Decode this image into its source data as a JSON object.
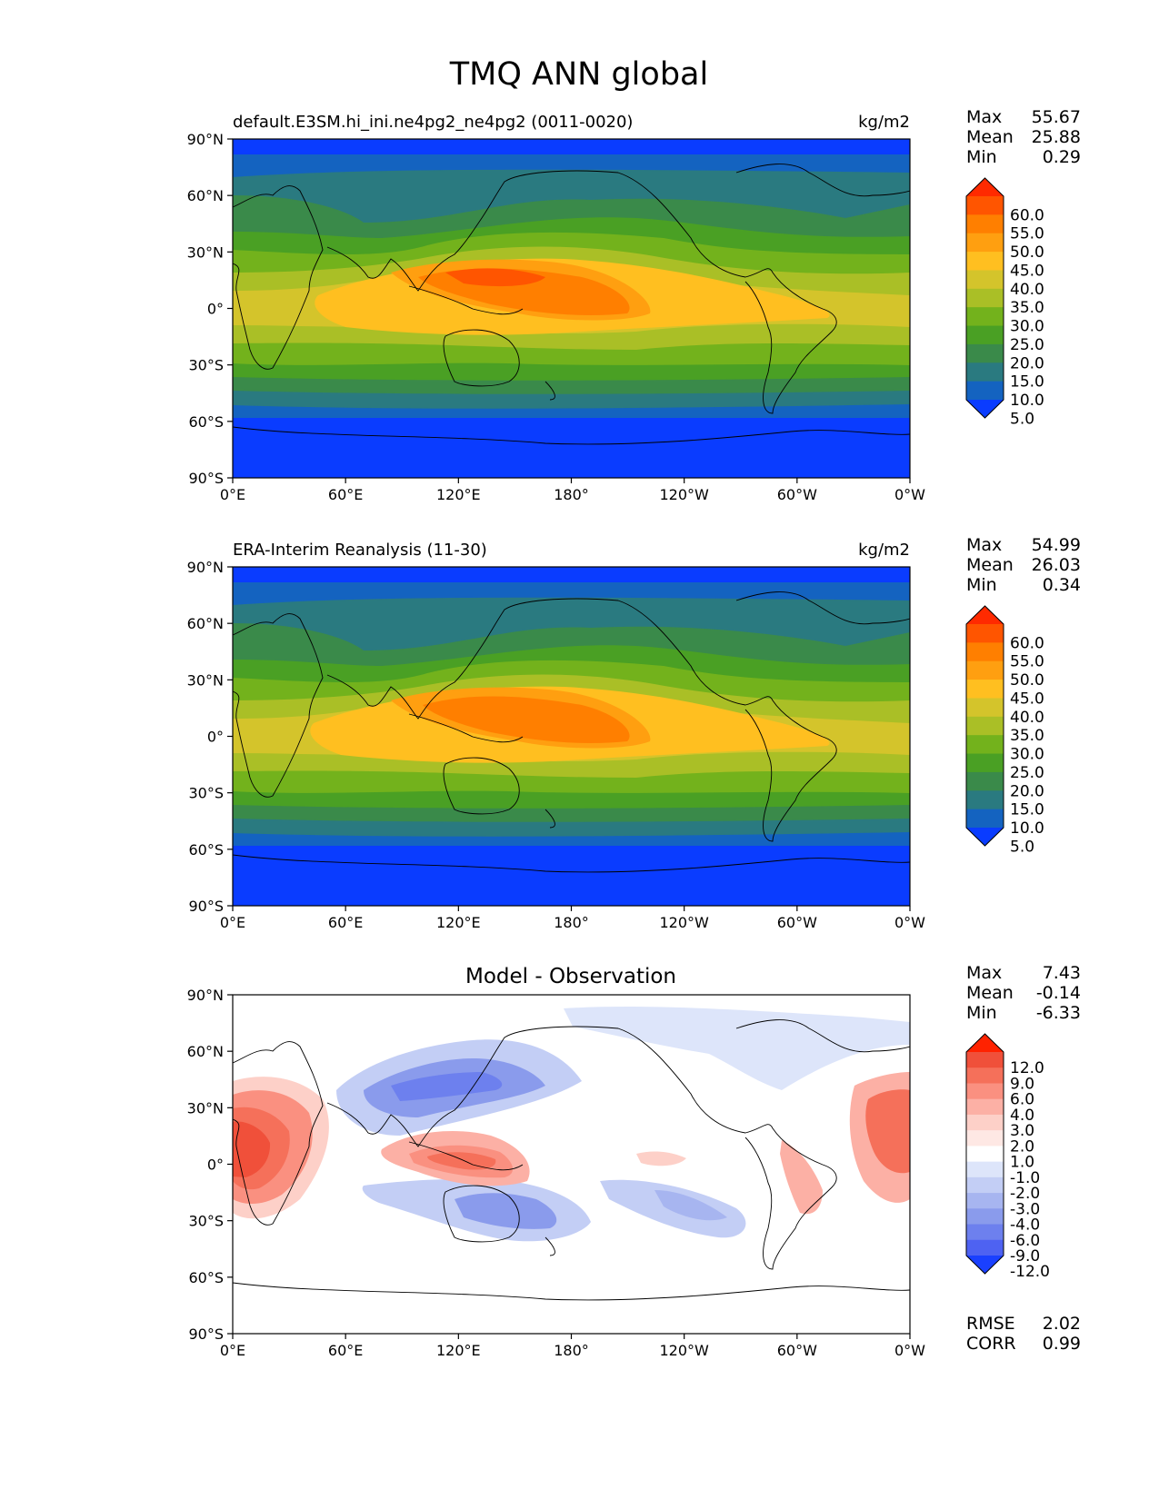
{
  "figure": {
    "title": "TMQ ANN global"
  },
  "chart_data": [
    {
      "type": "heatmap",
      "panel": "model",
      "title_left": "default.E3SM.hi_ini.ne4pg2_ne4pg2 (0011-0020)",
      "title_right": "kg/m2",
      "x_ticks": [
        "0°E",
        "60°E",
        "120°E",
        "180°",
        "120°W",
        "60°W",
        "0°W"
      ],
      "y_ticks": [
        "90°N",
        "60°N",
        "30°N",
        "0°",
        "30°S",
        "60°S",
        "90°S"
      ],
      "stats": [
        {
          "label": "Max",
          "value": "55.67"
        },
        {
          "label": "Mean",
          "value": "25.88"
        },
        {
          "label": "Min",
          "value": "0.29"
        }
      ],
      "colorbar": {
        "levels": [
          "60.0",
          "55.0",
          "50.0",
          "45.0",
          "40.0",
          "35.0",
          "30.0",
          "25.0",
          "20.0",
          "15.0",
          "10.0",
          "5.0"
        ],
        "colors": [
          "#ff2a00",
          "#ff5500",
          "#ff7f00",
          "#ff9f10",
          "#ffbf20",
          "#d4c42b",
          "#aabf26",
          "#73b21c",
          "#4aa024",
          "#3a8a4a",
          "#2a7a80",
          "#1463c0",
          "#0a3cff"
        ]
      }
    },
    {
      "type": "heatmap",
      "panel": "observation",
      "title_left": "ERA-Interim Reanalysis (11-30)",
      "title_right": "kg/m2",
      "x_ticks": [
        "0°E",
        "60°E",
        "120°E",
        "180°",
        "120°W",
        "60°W",
        "0°W"
      ],
      "y_ticks": [
        "90°N",
        "60°N",
        "30°N",
        "0°",
        "30°S",
        "60°S",
        "90°S"
      ],
      "stats": [
        {
          "label": "Max",
          "value": "54.99"
        },
        {
          "label": "Mean",
          "value": "26.03"
        },
        {
          "label": "Min",
          "value": "0.34"
        }
      ],
      "colorbar": {
        "levels": [
          "60.0",
          "55.0",
          "50.0",
          "45.0",
          "40.0",
          "35.0",
          "30.0",
          "25.0",
          "20.0",
          "15.0",
          "10.0",
          "5.0"
        ],
        "colors": [
          "#ff2a00",
          "#ff5500",
          "#ff7f00",
          "#ff9f10",
          "#ffbf20",
          "#d4c42b",
          "#aabf26",
          "#73b21c",
          "#4aa024",
          "#3a8a4a",
          "#2a7a80",
          "#1463c0",
          "#0a3cff"
        ]
      }
    },
    {
      "type": "heatmap",
      "panel": "difference",
      "title_center": "Model - Observation",
      "x_ticks": [
        "0°E",
        "60°E",
        "120°E",
        "180°",
        "120°W",
        "60°W",
        "0°W"
      ],
      "y_ticks": [
        "90°N",
        "60°N",
        "30°N",
        "0°",
        "30°S",
        "60°S",
        "90°S"
      ],
      "stats": [
        {
          "label": "Max",
          "value": "7.43"
        },
        {
          "label": "Mean",
          "value": "-0.14"
        },
        {
          "label": "Min",
          "value": "-6.33"
        }
      ],
      "metrics": [
        {
          "label": "RMSE",
          "value": "2.02"
        },
        {
          "label": "CORR",
          "value": "0.99"
        }
      ],
      "colorbar": {
        "levels": [
          "12.0",
          "9.0",
          "6.0",
          "4.0",
          "3.0",
          "2.0",
          "1.0",
          "-1.0",
          "-2.0",
          "-3.0",
          "-4.0",
          "-6.0",
          "-9.0",
          "-12.0"
        ],
        "colors": [
          "#ff2200",
          "#f0503a",
          "#f5705a",
          "#fa9080",
          "#fcb0a5",
          "#fdd0c8",
          "#fee8e4",
          "#ffffff",
          "#dde5fa",
          "#c3cef5",
          "#a7b5f0",
          "#8a9bec",
          "#6d80ee",
          "#4e62f2",
          "#1a40ff"
        ]
      }
    }
  ]
}
